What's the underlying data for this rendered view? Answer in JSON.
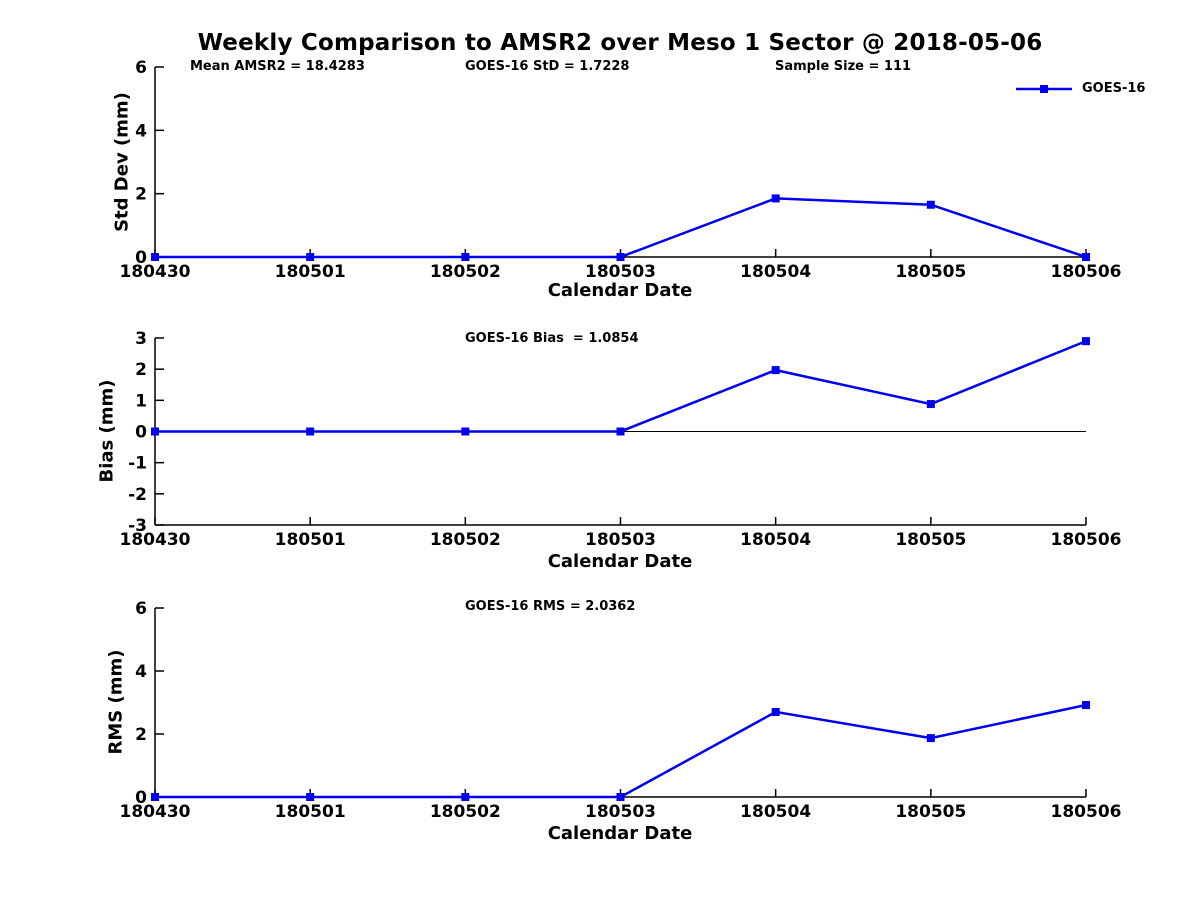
{
  "title": "Weekly Comparison to AMSR2 over Meso 1 Sector @ 2018-05-06",
  "legend": {
    "label": "GOES-16"
  },
  "colors": {
    "series": "#0000EE",
    "axis": "#000000",
    "background": "#FFFFFF"
  },
  "chart_data": [
    {
      "type": "line",
      "ylabel": "Std Dev (mm)",
      "xlabel": "Calendar Date",
      "categories": [
        "180430",
        "180501",
        "180502",
        "180503",
        "180504",
        "180505",
        "180506"
      ],
      "series": [
        {
          "name": "GOES-16",
          "values": [
            0,
            0,
            0,
            0,
            1.85,
            1.65,
            0
          ]
        }
      ],
      "ylim": [
        0,
        6
      ],
      "yticks": [
        0,
        2,
        4,
        6
      ],
      "grid": false,
      "legend_position": "top-right",
      "annotations": [
        {
          "text": "Mean AMSR2 = 18.4283"
        },
        {
          "text": "GOES-16 StD = 1.7228"
        },
        {
          "text": "Sample Size = 111"
        }
      ]
    },
    {
      "type": "line",
      "ylabel": "Bias (mm)",
      "xlabel": "Calendar Date",
      "categories": [
        "180430",
        "180501",
        "180502",
        "180503",
        "180504",
        "180505",
        "180506"
      ],
      "series": [
        {
          "name": "GOES-16",
          "values": [
            0,
            0,
            0,
            0,
            1.97,
            0.88,
            2.9
          ]
        }
      ],
      "ylim": [
        -3,
        3
      ],
      "yticks": [
        -3,
        -2,
        -1,
        0,
        1,
        2,
        3
      ],
      "grid": false,
      "zero_line": true,
      "annotations": [
        {
          "text": "GOES-16 Bias  = 1.0854"
        }
      ]
    },
    {
      "type": "line",
      "ylabel": "RMS (mm)",
      "xlabel": "Calendar Date",
      "categories": [
        "180430",
        "180501",
        "180502",
        "180503",
        "180504",
        "180505",
        "180506"
      ],
      "series": [
        {
          "name": "GOES-16",
          "values": [
            0,
            0,
            0,
            0,
            2.7,
            1.87,
            2.92
          ]
        }
      ],
      "ylim": [
        0,
        6
      ],
      "yticks": [
        0,
        2,
        4,
        6
      ],
      "grid": false,
      "annotations": [
        {
          "text": "GOES-16 RMS = 2.0362"
        }
      ]
    }
  ]
}
